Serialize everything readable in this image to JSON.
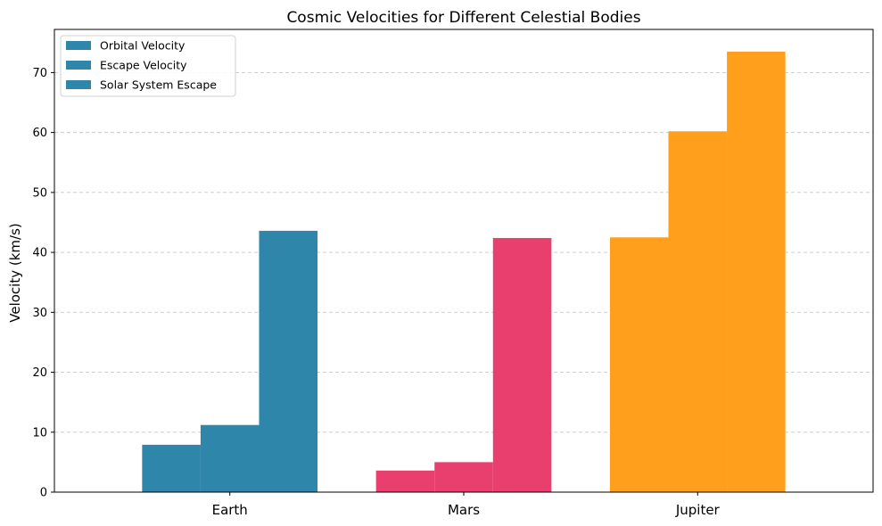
{
  "chart_data": {
    "type": "bar",
    "title": "Cosmic Velocities for Different Celestial Bodies",
    "xlabel": "",
    "ylabel": "Velocity (km/s)",
    "categories": [
      "Earth",
      "Mars",
      "Jupiter"
    ],
    "series": [
      {
        "name": "Orbital Velocity",
        "values": [
          7.9,
          3.6,
          42.5
        ]
      },
      {
        "name": "Escape Velocity",
        "values": [
          11.2,
          5.0,
          60.2
        ]
      },
      {
        "name": "Solar System Escape",
        "values": [
          43.6,
          42.4,
          73.5
        ]
      }
    ],
    "category_colors": [
      "#2E86AB",
      "#E83F6F",
      "#FF9F1C"
    ],
    "legend_swatch_color": "#2E86AB",
    "ylim": [
      0,
      77.2
    ],
    "yticks": [
      0,
      10,
      20,
      30,
      40,
      50,
      60,
      70
    ],
    "grid": "y-dashed",
    "legend_position": "top-left"
  }
}
